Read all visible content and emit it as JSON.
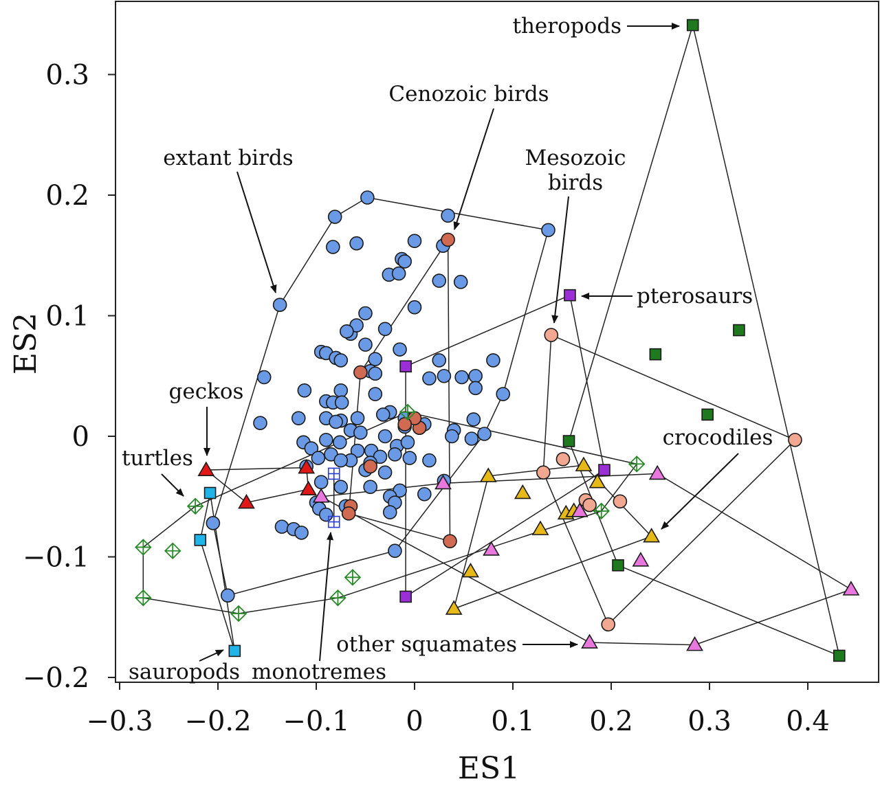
{
  "chart_data": {
    "type": "scatter",
    "title": "",
    "xlabel": "ES1",
    "ylabel": "ES2",
    "xlim": [
      -0.3,
      0.47
    ],
    "ylim": [
      -0.2,
      0.36
    ],
    "grid": false,
    "legend": "none",
    "x_ticks": [
      "−0.3",
      "−0.2",
      "−0.1",
      "0",
      "0.1",
      "0.2",
      "0.3",
      "0.4"
    ],
    "x_tick_values": [
      -0.3,
      -0.2,
      -0.1,
      0,
      0.1,
      0.2,
      0.3,
      0.4
    ],
    "y_ticks": [
      "−0.2",
      "−0.1",
      "0",
      "0.1",
      "0.2",
      "0.3"
    ],
    "y_tick_values": [
      -0.2,
      -0.1,
      0,
      0.1,
      0.2,
      0.3
    ],
    "series": [
      {
        "name": "extant birds",
        "marker": "circle",
        "color": "#6a9ae6",
        "points": [
          [
            -0.048,
            0.198
          ],
          [
            -0.081,
            0.182
          ],
          [
            0.034,
            0.183
          ],
          [
            0.136,
            0.171
          ],
          [
            -0.137,
            0.109
          ],
          [
            -0.083,
            0.157
          ],
          [
            -0.059,
            0.16
          ],
          [
            0,
            0.162
          ],
          [
            -0.013,
            0.147
          ],
          [
            -0.01,
            0.145
          ],
          [
            0.029,
            0.158
          ],
          [
            -0.026,
            0.134
          ],
          [
            -0.016,
            0.135
          ],
          [
            0.025,
            0.129
          ],
          [
            0.047,
            0.128
          ],
          [
            -0.05,
            0.102
          ],
          [
            -0.065,
            0.085
          ],
          [
            -0.05,
            0.076
          ],
          [
            -0.059,
            0.092
          ],
          [
            -0.069,
            0.087
          ],
          [
            -0.03,
            0.089
          ],
          [
            0,
            0.107
          ],
          [
            -0.095,
            0.07
          ],
          [
            -0.09,
            0.069
          ],
          [
            -0.08,
            0.065
          ],
          [
            -0.075,
            0.063
          ],
          [
            -0.04,
            0.064
          ],
          [
            -0.015,
            0.072
          ],
          [
            0.025,
            0.063
          ],
          [
            0.08,
            0.063
          ],
          [
            -0.153,
            0.049
          ],
          [
            -0.045,
            0.054
          ],
          [
            -0.04,
            0.052
          ],
          [
            0.015,
            0.048
          ],
          [
            0.03,
            0.05
          ],
          [
            0.048,
            0.049
          ],
          [
            0.062,
            0.05
          ],
          [
            0.062,
            0.04
          ],
          [
            -0.112,
            0.038
          ],
          [
            -0.075,
            0.038
          ],
          [
            -0.09,
            0.029
          ],
          [
            -0.083,
            0.028
          ],
          [
            -0.074,
            0.028
          ],
          [
            -0.025,
            0.02
          ],
          [
            -0.01,
            0.015
          ],
          [
            -0.04,
            0.035
          ],
          [
            0.09,
            0.035
          ],
          [
            -0.157,
            0.011
          ],
          [
            -0.118,
            0.015
          ],
          [
            -0.09,
            0.015
          ],
          [
            -0.075,
            0.013
          ],
          [
            -0.08,
            0.012
          ],
          [
            -0.058,
            0.015
          ],
          [
            -0.065,
            0.005
          ],
          [
            -0.055,
            0.003
          ],
          [
            -0.01,
            0.008
          ],
          [
            0.005,
            0.007
          ],
          [
            0.01,
            0.01
          ],
          [
            0.04,
            0.005
          ],
          [
            0.06,
            0.014
          ],
          [
            -0.113,
            -0.005
          ],
          [
            -0.09,
            -0.003
          ],
          [
            -0.076,
            -0.005
          ],
          [
            -0.058,
            -0.012
          ],
          [
            -0.044,
            -0.012
          ],
          [
            -0.03,
            0
          ],
          [
            -0.018,
            -0.008
          ],
          [
            -0.007,
            -0.005
          ],
          [
            0.038,
            0
          ],
          [
            0.058,
            -0.002
          ],
          [
            0.071,
            0.002
          ],
          [
            -0.105,
            -0.01
          ],
          [
            -0.085,
            -0.015
          ],
          [
            -0.098,
            -0.018
          ],
          [
            -0.02,
            -0.015
          ],
          [
            -0.035,
            -0.017
          ],
          [
            -0.045,
            -0.022
          ],
          [
            -0.065,
            -0.02
          ],
          [
            -0.11,
            -0.025
          ],
          [
            -0.075,
            -0.02
          ],
          [
            -0.05,
            -0.028
          ],
          [
            -0.03,
            -0.03
          ],
          [
            -0.005,
            -0.018
          ],
          [
            0.015,
            -0.02
          ],
          [
            -0.095,
            -0.038
          ],
          [
            -0.075,
            -0.042
          ],
          [
            -0.045,
            -0.042
          ],
          [
            -0.015,
            -0.045
          ],
          [
            0.01,
            -0.048
          ],
          [
            0.03,
            -0.037
          ],
          [
            -0.025,
            -0.05
          ],
          [
            -0.02,
            -0.055
          ],
          [
            -0.1,
            -0.055
          ],
          [
            -0.07,
            -0.058
          ],
          [
            -0.097,
            -0.06
          ],
          [
            -0.09,
            -0.065
          ],
          [
            -0.025,
            -0.063
          ],
          [
            -0.135,
            -0.075
          ],
          [
            -0.123,
            -0.077
          ],
          [
            -0.115,
            -0.08
          ],
          [
            -0.205,
            -0.072
          ],
          [
            -0.19,
            -0.132
          ],
          [
            -0.02,
            -0.095
          ],
          [
            -0.032,
            0.018
          ]
        ]
      },
      {
        "name": "Cenozoic birds",
        "marker": "circle",
        "color": "#d06a52",
        "points": [
          [
            0.034,
            0.163
          ],
          [
            -0.055,
            0.053
          ],
          [
            0.005,
            0.007
          ],
          [
            0.0,
            0.015
          ],
          [
            -0.01,
            0.01
          ],
          [
            -0.045,
            -0.025
          ],
          [
            -0.065,
            -0.058
          ],
          [
            -0.067,
            -0.064
          ],
          [
            0.036,
            -0.087
          ]
        ]
      },
      {
        "name": "Mesozoic birds",
        "marker": "circle",
        "color": "#f2a890",
        "points": [
          [
            0.139,
            0.084
          ],
          [
            0.387,
            -0.003
          ],
          [
            0.151,
            -0.019
          ],
          [
            0.131,
            -0.03
          ],
          [
            0.174,
            -0.053
          ],
          [
            0.178,
            -0.057
          ],
          [
            0.209,
            -0.054
          ],
          [
            0.197,
            -0.156
          ]
        ]
      },
      {
        "name": "pterosaurs",
        "marker": "square",
        "color": "#9b2fd6",
        "points": [
          [
            0.158,
            0.117
          ],
          [
            -0.009,
            0.058
          ],
          [
            0.193,
            -0.028
          ],
          [
            -0.009,
            -0.133
          ]
        ]
      },
      {
        "name": "theropods",
        "marker": "square",
        "color": "#1f7a1f",
        "points": [
          [
            0.283,
            0.341
          ],
          [
            0.33,
            0.088
          ],
          [
            0.245,
            0.068
          ],
          [
            0.298,
            0.018
          ],
          [
            0.157,
            -0.004
          ],
          [
            0.207,
            -0.107
          ],
          [
            0.432,
            -0.182
          ]
        ]
      },
      {
        "name": "sauropods",
        "marker": "square",
        "color": "#20b4e8",
        "points": [
          [
            -0.208,
            -0.047
          ],
          [
            -0.218,
            -0.086
          ],
          [
            -0.183,
            -0.178
          ]
        ]
      },
      {
        "name": "geckos",
        "marker": "triangle",
        "color": "#e01818",
        "points": [
          [
            -0.212,
            -0.028
          ],
          [
            -0.11,
            -0.026
          ],
          [
            -0.171,
            -0.055
          ],
          [
            -0.108,
            -0.044
          ]
        ]
      },
      {
        "name": "crocodiles",
        "marker": "triangle",
        "color": "#e6b818",
        "points": [
          [
            0.075,
            -0.033
          ],
          [
            0.11,
            -0.047
          ],
          [
            0.172,
            -0.024
          ],
          [
            0.186,
            -0.038
          ],
          [
            0.128,
            -0.077
          ],
          [
            0.154,
            -0.064
          ],
          [
            0.162,
            -0.062
          ],
          [
            0.241,
            -0.083
          ],
          [
            0.057,
            -0.112
          ],
          [
            0.04,
            -0.143
          ]
        ]
      },
      {
        "name": "other squamates",
        "marker": "triangle",
        "color": "#e878de",
        "points": [
          [
            0.247,
            -0.031
          ],
          [
            0.029,
            -0.039
          ],
          [
            -0.095,
            -0.05
          ],
          [
            0.168,
            -0.062
          ],
          [
            0.078,
            -0.094
          ],
          [
            0.23,
            -0.103
          ],
          [
            0.444,
            -0.127
          ],
          [
            0.178,
            -0.171
          ],
          [
            0.285,
            -0.173
          ]
        ]
      },
      {
        "name": "turtles",
        "marker": "diamond-cross",
        "color": "#2a8a2a",
        "points": [
          [
            -0.007,
            0.02
          ],
          [
            0.226,
            -0.023
          ],
          [
            -0.223,
            -0.058
          ],
          [
            0.19,
            -0.062
          ],
          [
            -0.276,
            -0.092
          ],
          [
            -0.246,
            -0.095
          ],
          [
            -0.063,
            -0.117
          ],
          [
            -0.276,
            -0.134
          ],
          [
            -0.078,
            -0.134
          ],
          [
            -0.179,
            -0.147
          ]
        ]
      },
      {
        "name": "monotremes",
        "marker": "square-cross",
        "color": "#2b3bd6",
        "points": [
          [
            -0.082,
            -0.031
          ],
          [
            -0.082,
            -0.071
          ]
        ]
      }
    ],
    "annotations": [
      {
        "text": "theropods"
      },
      {
        "text": "Cenozoic birds"
      },
      {
        "text": "extant birds"
      },
      {
        "text": "Mesozoic"
      },
      {
        "text": "birds"
      },
      {
        "text": "pterosaurs"
      },
      {
        "text": "geckos"
      },
      {
        "text": "turtles"
      },
      {
        "text": "crocodiles"
      },
      {
        "text": "other squamates"
      },
      {
        "text": "sauropods"
      },
      {
        "text": "monotremes"
      }
    ]
  }
}
